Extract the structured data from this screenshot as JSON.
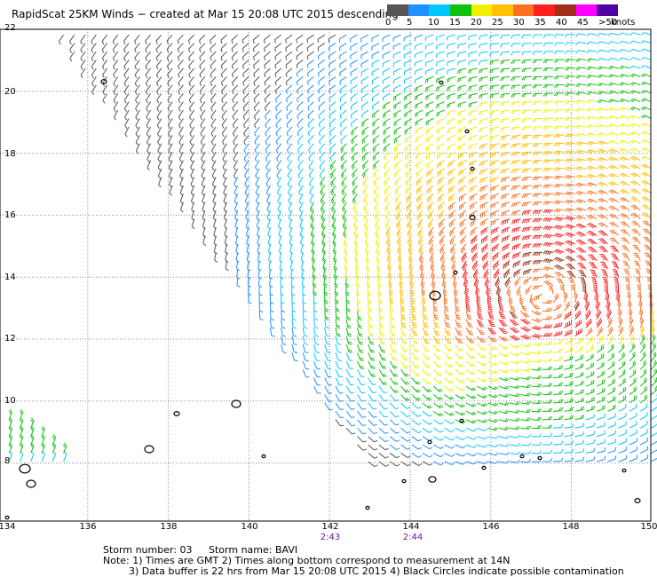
{
  "title": "RapidScat 25KM Winds − created at Mar 15 20:08 UTC 2015 descending",
  "scale": {
    "colors": [
      "#555555",
      "#2090ff",
      "#00c8ff",
      "#10c010",
      "#f0f000",
      "#ffc000",
      "#ff7020",
      "#ff2020",
      "#a03018",
      "#ff00ff",
      "#5000a0"
    ],
    "labels": [
      "0",
      "5",
      "10",
      "15",
      "20",
      "25",
      "30",
      "35",
      "40",
      "45",
      ">50"
    ],
    "unit": "knots"
  },
  "map": {
    "lon_labels": [
      "134",
      "136",
      "138",
      "140",
      "142",
      "144",
      "146",
      "148",
      "150"
    ],
    "lat_labels": [
      "8",
      "10",
      "12",
      "14",
      "16",
      "18",
      "20",
      "22"
    ],
    "lat_extra": "22",
    "time_labels": [
      {
        "lon": 142,
        "text": "2:43"
      },
      {
        "lon": 144,
        "text": "2:44"
      }
    ]
  },
  "notes": {
    "storm_number": "Storm number: 03",
    "storm_name": "Storm name: BAVI",
    "line1": "Note: 1) Times are GMT  2) Times along bottom correspond to measurement at 14N",
    "line2": "3) Data buffer is 22 hrs from Mar 15 20:08 UTC 2015  4) Black Circles indicate possible contamination"
  }
}
